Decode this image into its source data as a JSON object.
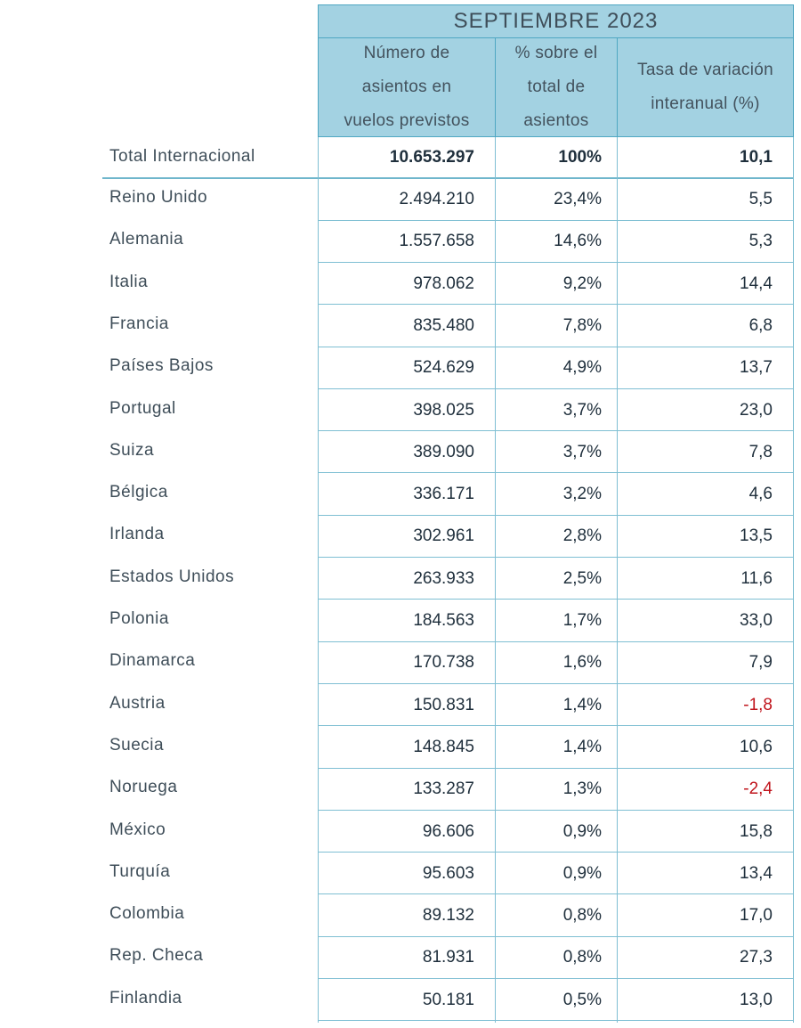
{
  "header": {
    "period": "SEPTIEMBRE 2023",
    "col_seats": "Número de\nasientos en\nvuelos previstos",
    "col_share": "% sobre el\ntotal de\nasientos",
    "col_rate": "Tasa de variación\ninteranual (%)"
  },
  "total": {
    "label": "Total Internacional",
    "seats": "10.653.297",
    "share": "100%",
    "rate": "10,1"
  },
  "rows": [
    {
      "country": "Reino Unido",
      "seats": "2.494.210",
      "share": "23,4%",
      "rate": "5,5",
      "negative": false
    },
    {
      "country": "Alemania",
      "seats": "1.557.658",
      "share": "14,6%",
      "rate": "5,3",
      "negative": false
    },
    {
      "country": "Italia",
      "seats": "978.062",
      "share": "9,2%",
      "rate": "14,4",
      "negative": false
    },
    {
      "country": "Francia",
      "seats": "835.480",
      "share": "7,8%",
      "rate": "6,8",
      "negative": false
    },
    {
      "country": "Países Bajos",
      "seats": "524.629",
      "share": "4,9%",
      "rate": "13,7",
      "negative": false
    },
    {
      "country": "Portugal",
      "seats": "398.025",
      "share": "3,7%",
      "rate": "23,0",
      "negative": false
    },
    {
      "country": "Suiza",
      "seats": "389.090",
      "share": "3,7%",
      "rate": "7,8",
      "negative": false
    },
    {
      "country": "Bélgica",
      "seats": "336.171",
      "share": "3,2%",
      "rate": "4,6",
      "negative": false
    },
    {
      "country": "Irlanda",
      "seats": "302.961",
      "share": "2,8%",
      "rate": "13,5",
      "negative": false
    },
    {
      "country": "Estados Unidos",
      "seats": "263.933",
      "share": "2,5%",
      "rate": "11,6",
      "negative": false
    },
    {
      "country": "Polonia",
      "seats": "184.563",
      "share": "1,7%",
      "rate": "33,0",
      "negative": false
    },
    {
      "country": "Dinamarca",
      "seats": "170.738",
      "share": "1,6%",
      "rate": "7,9",
      "negative": false
    },
    {
      "country": "Austria",
      "seats": "150.831",
      "share": "1,4%",
      "rate": "-1,8",
      "negative": true
    },
    {
      "country": "Suecia",
      "seats": "148.845",
      "share": "1,4%",
      "rate": "10,6",
      "negative": false
    },
    {
      "country": "Noruega",
      "seats": "133.287",
      "share": "1,3%",
      "rate": "-2,4",
      "negative": true
    },
    {
      "country": "México",
      "seats": "96.606",
      "share": "0,9%",
      "rate": "15,8",
      "negative": false
    },
    {
      "country": "Turquía",
      "seats": "95.603",
      "share": "0,9%",
      "rate": "13,4",
      "negative": false
    },
    {
      "country": "Colombia",
      "seats": "89.132",
      "share": "0,8%",
      "rate": "17,0",
      "negative": false
    },
    {
      "country": "Rep. Checa",
      "seats": "81.931",
      "share": "0,8%",
      "rate": "27,3",
      "negative": false
    },
    {
      "country": "Finlandia",
      "seats": "50.181",
      "share": "0,5%",
      "rate": "13,0",
      "negative": false
    }
  ]
}
